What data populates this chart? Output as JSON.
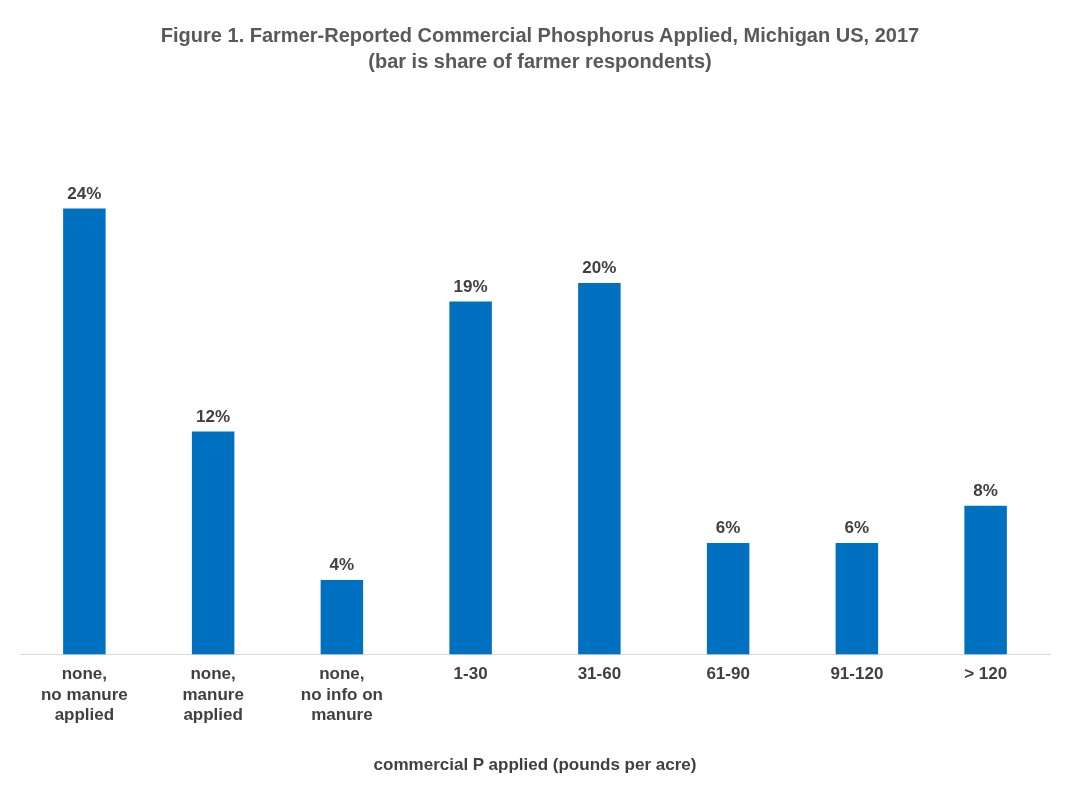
{
  "chart_data": {
    "type": "bar",
    "title": "Figure 1.  Farmer-Reported Commercial Phosphorus Applied, Michigan US, 2017 (bar is share of farmer respondents)",
    "xlabel": "commercial P applied (pounds per acre)",
    "categories": [
      "none,\nno manure\napplied",
      "none,\nmanure\napplied",
      "none,\nno info on\nmanure",
      "1-30",
      "31-60",
      "61-90",
      "91-120",
      "> 120"
    ],
    "values": [
      24,
      12,
      4,
      19,
      20,
      6,
      6,
      8
    ],
    "value_labels": [
      "24%",
      "12%",
      "4%",
      "19%",
      "20%",
      "6%",
      "6%",
      "8%"
    ],
    "color": "#0070c0",
    "grid": false,
    "legend": false
  }
}
